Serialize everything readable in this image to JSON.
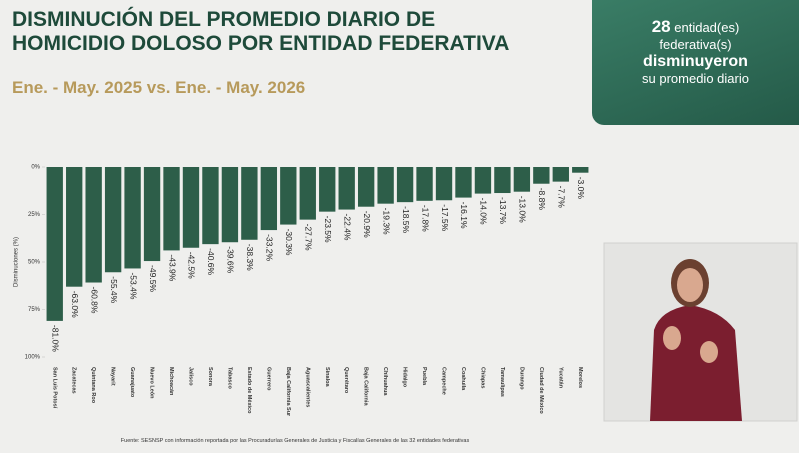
{
  "header": {
    "title_lines": [
      "DISMINUCIÓN DEL PROMEDIO DIARIO DE",
      "HOMICIDIO DOLOSO POR ENTIDAD FEDERATIVA"
    ],
    "subtitle": "Ene. - May. 2025 vs. Ene. - May. 2026"
  },
  "callout": {
    "count": "28",
    "unit1": "entidad(es)",
    "unit2": "federativa(s)",
    "verb": "disminuyeron",
    "rest": "su promedio diario"
  },
  "chart_data": {
    "type": "bar",
    "color": "#2d5e49",
    "y_label": "Disminuciones (%)",
    "categories": [
      "San Luis Potosí",
      "Zacatecas",
      "Quintana Roo",
      "Nayarit",
      "Guanajuato",
      "Nuevo León",
      "Michoacán",
      "Jalisco",
      "Sonora",
      "Tabasco",
      "Estado de México",
      "Guerrero",
      "Baja California Sur",
      "Aguascalientes",
      "Sinaloa",
      "Querétaro",
      "Baja California",
      "Chihuahua",
      "Hidalgo",
      "Puebla",
      "Campeche",
      "Coahuila",
      "Chiapas",
      "Tamaulipas",
      "Durango",
      "Ciudad de México",
      "Yucatán",
      "Morelos"
    ],
    "values": [
      -81.0,
      -63.0,
      -60.8,
      -55.4,
      -53.4,
      -49.5,
      -43.9,
      -42.5,
      -40.6,
      -39.6,
      -38.3,
      -33.2,
      -30.3,
      -27.7,
      -23.5,
      -22.4,
      -20.9,
      -19.3,
      -18.5,
      -17.8,
      -17.5,
      -16.1,
      -14.0,
      -13.7,
      -13.0,
      -8.8,
      -7.7,
      -3.0
    ],
    "value_labels": [
      "-81.0%",
      "-63.0%",
      "-60.8%",
      "-55.4%",
      "-53.4%",
      "-49.5%",
      "-43.9%",
      "-42.5%",
      "-40.6%",
      "-39.6%",
      "-38.3%",
      "-33.2%",
      "-30.3%",
      "-27.7%",
      "-23.5%",
      "-22.4%",
      "-20.9%",
      "-19.3%",
      "-18.5%",
      "-17.8%",
      "-17.5%",
      "-16.1%",
      "-14.0%",
      "-13.7%",
      "-13.0%",
      "-8.8%",
      "-7.7%",
      "-3.0%"
    ],
    "ylim": [
      -100,
      0
    ],
    "yticks": [
      {
        "value": 0,
        "label": "0%"
      },
      {
        "value": -25,
        "label": "25%"
      },
      {
        "value": -50,
        "label": "50%"
      },
      {
        "value": -75,
        "label": "75%"
      },
      {
        "value": -100,
        "label": "100%"
      }
    ]
  },
  "footnote": "Fuente: SESNSP con información reportada por las Procuradurías Generales de Justicia y Fiscalías Generales de las 32 entidades federativas"
}
